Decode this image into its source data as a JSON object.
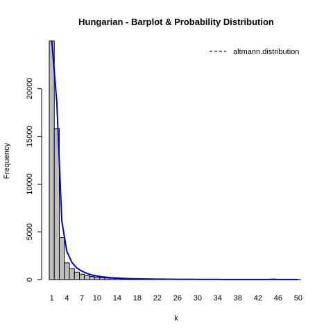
{
  "chart_data": {
    "type": "bar",
    "title": "Hungarian - Barplot & Probability Distribution",
    "xlabel": "k",
    "ylabel": "Frequency",
    "ylim": [
      0,
      25000
    ],
    "y_ticks": [
      0,
      5000,
      10000,
      15000,
      20000
    ],
    "x_tick_labels": [
      "1",
      "4",
      "7",
      "10",
      "14",
      "18",
      "22",
      "26",
      "30",
      "34",
      "38",
      "42",
      "46",
      "50"
    ],
    "x_tick_categories": [
      1,
      4,
      7,
      10,
      14,
      18,
      22,
      26,
      30,
      34,
      38,
      42,
      46,
      50
    ],
    "categories": [
      1,
      2,
      3,
      4,
      5,
      6,
      7,
      8,
      9,
      10,
      11,
      12,
      13,
      14,
      15,
      16,
      17,
      18,
      19,
      20,
      21,
      22,
      23,
      24,
      25,
      26,
      27,
      28,
      29,
      30,
      31,
      32,
      33,
      34,
      35,
      36,
      37,
      38,
      39,
      40,
      41,
      42,
      43,
      44,
      45,
      46,
      47,
      48,
      49,
      50
    ],
    "values": [
      25000,
      15800,
      4400,
      1750,
      1150,
      780,
      560,
      420,
      320,
      250,
      200,
      160,
      130,
      105,
      85,
      70,
      58,
      48,
      40,
      34,
      29,
      25,
      21,
      18,
      16,
      14,
      12,
      11,
      10,
      9,
      8,
      7,
      6,
      6,
      5,
      5,
      4,
      4,
      4,
      3,
      3,
      3,
      2,
      2,
      60,
      2,
      2,
      2,
      1,
      1
    ],
    "bar_color": "#bebebe",
    "bar_edge_color": "#000000",
    "series": [
      {
        "name": "altmann.distribution",
        "color": "#0000cd",
        "values": [
          25000,
          18600,
          6100,
          2950,
          1800,
          1200,
          880,
          640,
          480,
          370,
          290,
          235,
          190,
          160,
          132,
          110,
          95,
          82,
          71,
          62,
          55,
          49,
          43,
          38,
          34,
          31,
          28,
          25,
          23,
          21,
          19,
          17,
          16,
          15,
          13,
          12,
          11,
          11,
          10,
          9,
          9,
          8,
          8,
          7,
          7,
          6,
          6,
          6,
          5,
          5
        ]
      }
    ],
    "legend": {
      "position": "top-right",
      "label": "altmann.distribution",
      "line_style": "dashed"
    }
  }
}
